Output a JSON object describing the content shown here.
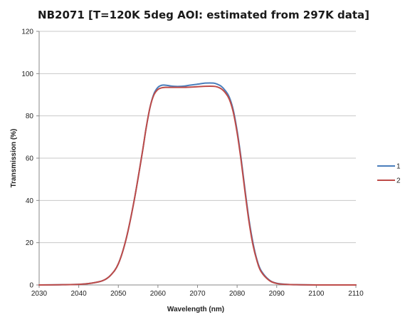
{
  "chart_data": {
    "type": "line",
    "title": "NB2071 [T=120K 5deg AOI: estimated from 297K data]",
    "xlabel": "Wavelength (nm)",
    "ylabel": "Transmission (%)",
    "xlim": [
      2030,
      2110
    ],
    "ylim": [
      0,
      120
    ],
    "xticks": [
      2030,
      2040,
      2050,
      2060,
      2070,
      2080,
      2090,
      2100,
      2110
    ],
    "yticks": [
      0,
      20,
      40,
      60,
      80,
      100,
      120
    ],
    "grid": "horizontal",
    "legend_position": "right",
    "series": [
      {
        "name": "1",
        "color": "#4a7ebb",
        "x": [
          2030,
          2035,
          2040,
          2043,
          2046,
          2048,
          2050,
          2052,
          2054,
          2056,
          2057,
          2058,
          2059,
          2060,
          2061,
          2062,
          2064,
          2066,
          2068,
          2070,
          2072,
          2074,
          2075,
          2076,
          2077,
          2078,
          2079,
          2080,
          2081,
          2082,
          2083,
          2084,
          2085,
          2086,
          2088,
          2090,
          2093,
          2096,
          2100,
          2105,
          2110
        ],
        "y": [
          0,
          0.1,
          0.3,
          0.8,
          2,
          4.5,
          10,
          22,
          40,
          62,
          74,
          84,
          90.5,
          93.5,
          94.5,
          94.5,
          94,
          94,
          94.5,
          95,
          95.5,
          95.5,
          95,
          94,
          92,
          89,
          83,
          73,
          60,
          45,
          31,
          20,
          12,
          7,
          2.5,
          0.8,
          0.2,
          0.1,
          0,
          0,
          0
        ]
      },
      {
        "name": "2",
        "color": "#be4b48",
        "x": [
          2030,
          2035,
          2040,
          2043,
          2046,
          2048,
          2050,
          2052,
          2054,
          2056,
          2057,
          2058,
          2059,
          2060,
          2061,
          2062,
          2064,
          2066,
          2068,
          2070,
          2072,
          2074,
          2075,
          2076,
          2077,
          2078,
          2079,
          2080,
          2081,
          2082,
          2083,
          2084,
          2085,
          2086,
          2088,
          2090,
          2093,
          2096,
          2100,
          2105,
          2110
        ],
        "y": [
          0,
          0.1,
          0.3,
          0.8,
          2,
          4.5,
          10,
          22,
          40,
          62,
          74,
          84,
          90,
          92.5,
          93.3,
          93.5,
          93.5,
          93.5,
          93.6,
          93.8,
          94,
          94,
          93.7,
          92.8,
          91,
          88,
          82,
          72,
          59,
          44,
          30,
          19,
          11.5,
          6.5,
          2.3,
          0.7,
          0.2,
          0.1,
          0,
          0,
          0
        ]
      }
    ]
  }
}
